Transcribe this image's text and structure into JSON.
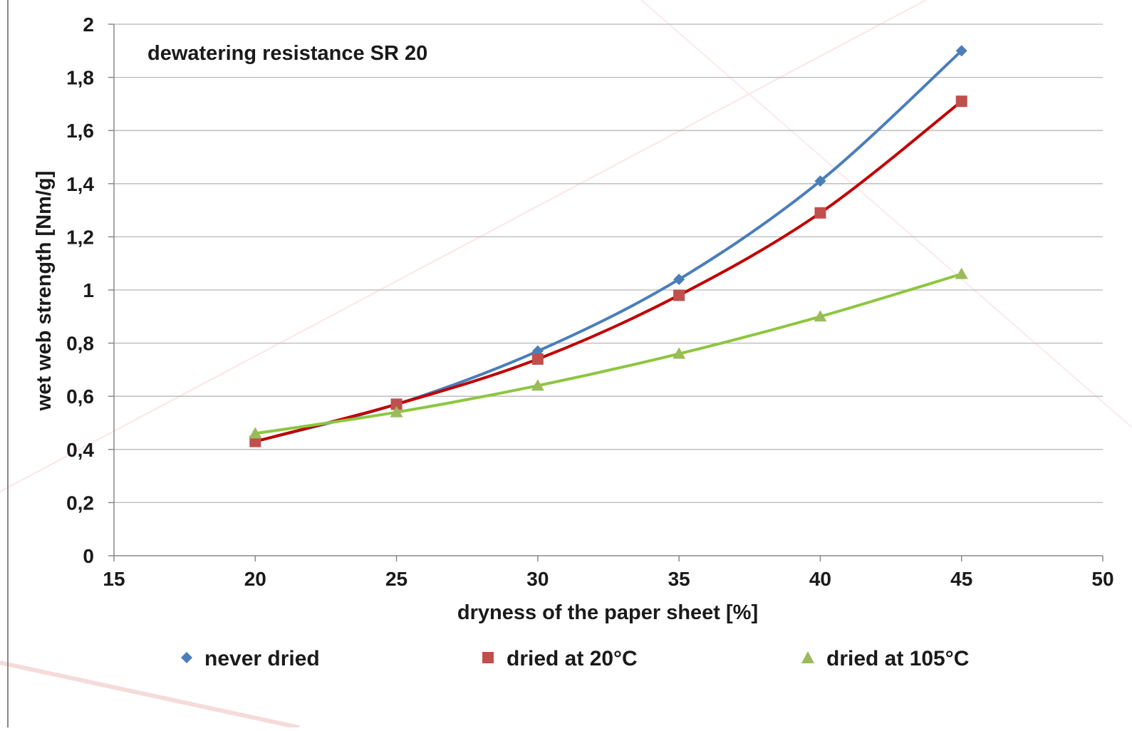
{
  "chart_data": {
    "type": "line",
    "title": "",
    "annotation": "dewatering resistance SR 20",
    "xlabel": "dryness of the paper sheet [%]",
    "ylabel": "wet web strength [Nm/g]",
    "xlim": [
      15,
      50
    ],
    "ylim": [
      0,
      2
    ],
    "x_ticks": [
      "15",
      "20",
      "25",
      "30",
      "35",
      "40",
      "45",
      "50"
    ],
    "y_ticks": [
      "0",
      "0,2",
      "0,4",
      "0,6",
      "0,8",
      "1",
      "1,2",
      "1,4",
      "1,6",
      "1,8",
      "2"
    ],
    "grid": "horizontal",
    "legend_position": "bottom",
    "x": [
      20,
      25,
      30,
      35,
      40,
      45
    ],
    "series": [
      {
        "name": "never dried",
        "marker": "diamond",
        "color": "#4a7ebb",
        "values": [
          0.43,
          0.57,
          0.77,
          1.04,
          1.41,
          1.9
        ]
      },
      {
        "name": "dried at 20°C",
        "marker": "square",
        "color": "#c00000",
        "marker_color": "#c0504d",
        "values": [
          0.43,
          0.57,
          0.74,
          0.98,
          1.29,
          1.71
        ]
      },
      {
        "name": "dried at 105°C",
        "marker": "triangle",
        "color": "#8dc63f",
        "marker_color": "#9bbb59",
        "values": [
          0.46,
          0.54,
          0.64,
          0.76,
          0.9,
          1.06
        ]
      }
    ]
  }
}
